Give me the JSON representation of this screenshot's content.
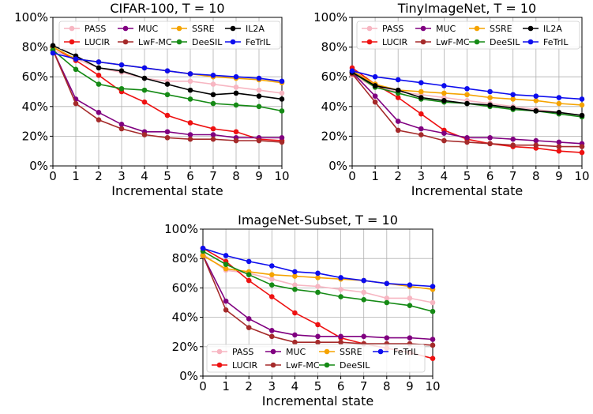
{
  "colors": {
    "PASS": "#f7b6c2",
    "LUCIR": "#ee1111",
    "MUC": "#800080",
    "LwF-MC": "#a52a2a",
    "SSRE": "#f5a300",
    "DeeSIL": "#158a15",
    "IL2A": "#000000",
    "FeTrIL": "#0d0dee"
  },
  "chart_data": [
    {
      "type": "line",
      "title": "CIFAR-100, T = 10",
      "xlabel": "Incremental state",
      "ylabel": "",
      "x": [
        0,
        1,
        2,
        3,
        4,
        5,
        6,
        7,
        8,
        9,
        10
      ],
      "xlim": [
        0,
        10
      ],
      "ylim": [
        0,
        100
      ],
      "yticks": [
        "0%",
        "20%",
        "40%",
        "60%",
        "80%",
        "100%"
      ],
      "grid": true,
      "legend": "top",
      "legend_order": [
        "PASS",
        "MUC",
        "SSRE",
        "IL2A",
        "LUCIR",
        "LwF-MC",
        "DeeSIL",
        "FeTrIL"
      ],
      "series": [
        {
          "name": "PASS",
          "values": [
            78,
            72,
            66,
            63,
            59,
            57,
            57,
            55,
            53,
            51,
            49
          ]
        },
        {
          "name": "LUCIR",
          "values": [
            80,
            71,
            61,
            50,
            43,
            34,
            29,
            25,
            23,
            18,
            17
          ]
        },
        {
          "name": "MUC",
          "values": [
            78,
            45,
            36,
            28,
            23,
            23,
            21,
            21,
            19,
            19,
            19
          ]
        },
        {
          "name": "LwF-MC",
          "values": [
            78,
            42,
            31,
            25,
            21,
            19,
            18,
            18,
            17,
            17,
            16
          ]
        },
        {
          "name": "SSRE",
          "values": [
            80,
            72,
            70,
            68,
            66,
            64,
            62,
            60,
            59,
            58,
            56
          ]
        },
        {
          "name": "DeeSIL",
          "values": [
            78,
            65,
            55,
            52,
            51,
            48,
            45,
            42,
            41,
            40,
            37
          ]
        },
        {
          "name": "IL2A",
          "values": [
            81,
            74,
            66,
            64,
            59,
            55,
            51,
            48,
            49,
            47,
            45
          ]
        },
        {
          "name": "FeTrIL",
          "values": [
            76,
            72,
            70,
            68,
            66,
            64,
            62,
            61,
            60,
            59,
            57
          ]
        }
      ]
    },
    {
      "type": "line",
      "title": "TinyImageNet, T = 10",
      "xlabel": "Incremental state",
      "ylabel": "",
      "x": [
        0,
        1,
        2,
        3,
        4,
        5,
        6,
        7,
        8,
        9,
        10
      ],
      "xlim": [
        0,
        10
      ],
      "ylim": [
        0,
        100
      ],
      "yticks": [
        "0%",
        "20%",
        "40%",
        "60%",
        "80%",
        "100%"
      ],
      "grid": true,
      "legend": "top",
      "legend_order": [
        "PASS",
        "MUC",
        "SSRE",
        "IL2A",
        "LUCIR",
        "LwF-MC",
        "DeeSIL",
        "FeTrIL"
      ],
      "series": [
        {
          "name": "PASS",
          "values": [
            61,
            53,
            50,
            48,
            46,
            44,
            42,
            40,
            38,
            36,
            34
          ]
        },
        {
          "name": "LUCIR",
          "values": [
            66,
            55,
            46,
            35,
            24,
            18,
            15,
            13,
            12,
            10,
            9
          ]
        },
        {
          "name": "MUC",
          "values": [
            63,
            47,
            30,
            25,
            22,
            19,
            19,
            18,
            17,
            16,
            15
          ]
        },
        {
          "name": "LwF-MC",
          "values": [
            62,
            43,
            24,
            21,
            17,
            16,
            15,
            14,
            14,
            13,
            13
          ]
        },
        {
          "name": "SSRE",
          "values": [
            64,
            55,
            51,
            50,
            49,
            48,
            46,
            45,
            44,
            42,
            41
          ]
        },
        {
          "name": "DeeSIL",
          "values": [
            63,
            53,
            49,
            45,
            43,
            42,
            40,
            38,
            37,
            35,
            33
          ]
        },
        {
          "name": "IL2A",
          "values": [
            63,
            54,
            51,
            46,
            44,
            42,
            41,
            39,
            37,
            36,
            34
          ]
        },
        {
          "name": "FeTrIL",
          "values": [
            64,
            60,
            58,
            56,
            54,
            52,
            50,
            48,
            47,
            46,
            45
          ]
        }
      ]
    },
    {
      "type": "line",
      "title": "ImageNet-Subset, T = 10",
      "xlabel": "Incremental state",
      "ylabel": "",
      "x": [
        0,
        1,
        2,
        3,
        4,
        5,
        6,
        7,
        8,
        9,
        10
      ],
      "xlim": [
        0,
        10
      ],
      "ylim": [
        0,
        100
      ],
      "yticks": [
        "0%",
        "20%",
        "40%",
        "60%",
        "80%",
        "100%"
      ],
      "grid": true,
      "legend": "bottom-left",
      "legend_order": [
        "PASS",
        "MUC",
        "SSRE",
        "FeTrIL",
        "LUCIR",
        "LwF-MC",
        "DeeSIL"
      ],
      "series": [
        {
          "name": "PASS",
          "values": [
            83,
            72,
            70,
            66,
            62,
            61,
            59,
            57,
            53,
            53,
            50
          ]
        },
        {
          "name": "LUCIR",
          "values": [
            87,
            78,
            65,
            54,
            43,
            35,
            26,
            22,
            19,
            16,
            12
          ]
        },
        {
          "name": "MUC",
          "values": [
            82,
            51,
            39,
            31,
            28,
            27,
            27,
            27,
            26,
            26,
            25
          ]
        },
        {
          "name": "LwF-MC",
          "values": [
            82,
            45,
            33,
            27,
            23,
            23,
            23,
            22,
            22,
            22,
            21
          ]
        },
        {
          "name": "SSRE",
          "values": [
            82,
            73,
            71,
            69,
            68,
            67,
            66,
            65,
            63,
            61,
            59
          ]
        },
        {
          "name": "DeeSIL",
          "values": [
            85,
            76,
            69,
            62,
            59,
            57,
            54,
            52,
            50,
            48,
            44
          ]
        },
        {
          "name": "FeTrIL",
          "values": [
            87,
            82,
            78,
            75,
            71,
            70,
            67,
            65,
            63,
            62,
            61
          ]
        }
      ]
    }
  ]
}
